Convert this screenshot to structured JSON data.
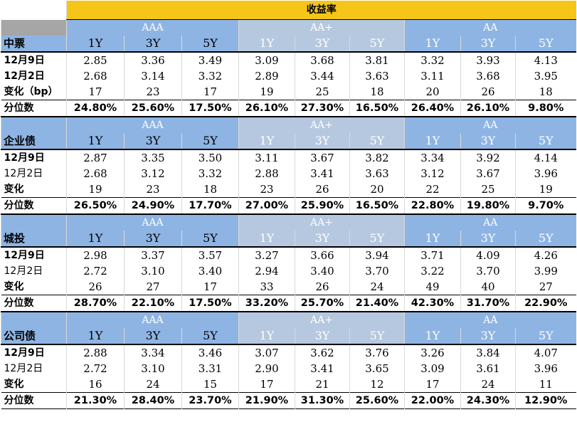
{
  "title": "收益率",
  "ratings": [
    "AAA",
    "AA+",
    "AA"
  ],
  "tenors": [
    "1Y",
    "3Y",
    "5Y"
  ],
  "sections": [
    {
      "name": "中票",
      "rows": [
        {
          "label": "12月9日",
          "bold": true,
          "values": [
            "2.85",
            "3.36",
            "3.49",
            "3.09",
            "3.68",
            "3.81",
            "3.32",
            "3.93",
            "4.13"
          ]
        },
        {
          "label": "12月2日",
          "bold": true,
          "values": [
            "2.68",
            "3.14",
            "3.32",
            "2.89",
            "3.44",
            "3.63",
            "3.11",
            "3.68",
            "3.95"
          ]
        },
        {
          "label": "变化（bp）",
          "bold": true,
          "values": [
            "17",
            "23",
            "17",
            "19",
            "25",
            "18",
            "20",
            "26",
            "18"
          ]
        },
        {
          "label": "分位数",
          "bold": true,
          "values": [
            "24.80%",
            "25.60%",
            "17.50%",
            "26.10%",
            "27.30%",
            "16.50%",
            "26.40%",
            "26.10%",
            "9.80%"
          ]
        }
      ]
    },
    {
      "name": "企业债",
      "rows": [
        {
          "label": "12月9日",
          "bold": true,
          "values": [
            "2.87",
            "3.35",
            "3.50",
            "3.11",
            "3.67",
            "3.82",
            "3.34",
            "3.92",
            "4.14"
          ]
        },
        {
          "label": "12月2日",
          "bold": false,
          "values": [
            "2.68",
            "3.12",
            "3.32",
            "2.88",
            "3.41",
            "3.63",
            "3.12",
            "3.67",
            "3.96"
          ]
        },
        {
          "label": "变化",
          "bold": true,
          "values": [
            "19",
            "23",
            "18",
            "23",
            "26",
            "20",
            "22",
            "25",
            "19"
          ]
        },
        {
          "label": "分位数",
          "bold": true,
          "values": [
            "26.50%",
            "24.90%",
            "17.70%",
            "27.00%",
            "25.90%",
            "16.50%",
            "22.80%",
            "19.80%",
            "9.70%"
          ]
        }
      ]
    },
    {
      "name": "城投",
      "rows": [
        {
          "label": "12月9日",
          "bold": true,
          "values": [
            "2.98",
            "3.37",
            "3.57",
            "3.27",
            "3.66",
            "3.94",
            "3.71",
            "4.09",
            "4.26"
          ]
        },
        {
          "label": "12月2日",
          "bold": false,
          "values": [
            "2.72",
            "3.10",
            "3.40",
            "2.94",
            "3.40",
            "3.70",
            "3.22",
            "3.70",
            "3.99"
          ]
        },
        {
          "label": "变化",
          "bold": true,
          "values": [
            "26",
            "27",
            "17",
            "33",
            "26",
            "24",
            "49",
            "40",
            "27"
          ]
        },
        {
          "label": "分位数",
          "bold": true,
          "values": [
            "28.70%",
            "22.10%",
            "17.50%",
            "33.20%",
            "25.70%",
            "21.40%",
            "42.30%",
            "31.70%",
            "22.90%"
          ]
        }
      ]
    },
    {
      "name": "公司债",
      "rows": [
        {
          "label": "12月9日",
          "bold": true,
          "values": [
            "2.88",
            "3.34",
            "3.46",
            "3.07",
            "3.62",
            "3.76",
            "3.26",
            "3.84",
            "4.07"
          ]
        },
        {
          "label": "12月2日",
          "bold": false,
          "values": [
            "2.72",
            "3.10",
            "3.31",
            "2.90",
            "3.41",
            "3.65",
            "3.09",
            "3.61",
            "3.96"
          ]
        },
        {
          "label": "变化",
          "bold": true,
          "values": [
            "16",
            "24",
            "15",
            "17",
            "21",
            "12",
            "17",
            "24",
            "11"
          ]
        },
        {
          "label": "分位数",
          "bold": true,
          "values": [
            "21.30%",
            "28.40%",
            "23.70%",
            "21.90%",
            "31.30%",
            "25.60%",
            "22.00%",
            "24.30%",
            "12.90%"
          ]
        }
      ]
    }
  ]
}
